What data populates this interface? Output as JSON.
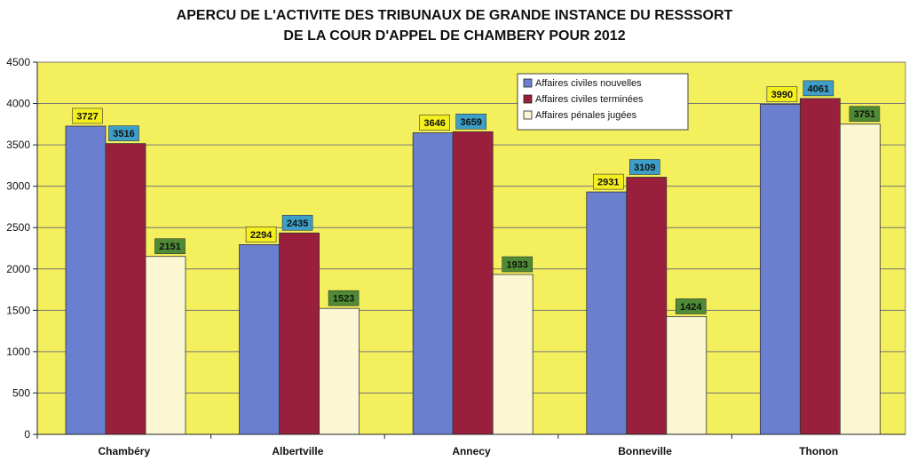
{
  "colors": {
    "plot_background": "#f4ef5c",
    "series1": "#6b7fd0",
    "series2": "#9a1f3d",
    "series3": "#fbf7d2",
    "label_bg1": "#f5ef1e",
    "label_bg2": "#3d9fc7",
    "label_bg3": "#4f8b34"
  },
  "chart_data": {
    "type": "bar",
    "title": "APERCU DE L'ACTIVITE DES TRIBUNAUX DE GRANDE INSTANCE DU RESSSORT",
    "subtitle": "DE LA COUR D'APPEL DE CHAMBERY POUR 2012",
    "categories": [
      "Chambéry",
      "Albertville",
      "Annecy",
      "Bonneville",
      "Thonon"
    ],
    "series": [
      {
        "name": "Affaires civiles nouvelles",
        "values": [
          3727,
          2294,
          3646,
          2931,
          3990
        ]
      },
      {
        "name": "Affaires civiles terminées",
        "values": [
          3516,
          2435,
          3659,
          3109,
          4061
        ]
      },
      {
        "name": "Affaires pénales jugées",
        "values": [
          2151,
          1523,
          1933,
          1424,
          3751
        ]
      }
    ],
    "ylim": [
      0,
      4500
    ],
    "yticks": [
      0,
      500,
      1000,
      1500,
      2000,
      2500,
      3000,
      3500,
      4000,
      4500
    ],
    "grid": true,
    "legend_position": "top-right"
  }
}
